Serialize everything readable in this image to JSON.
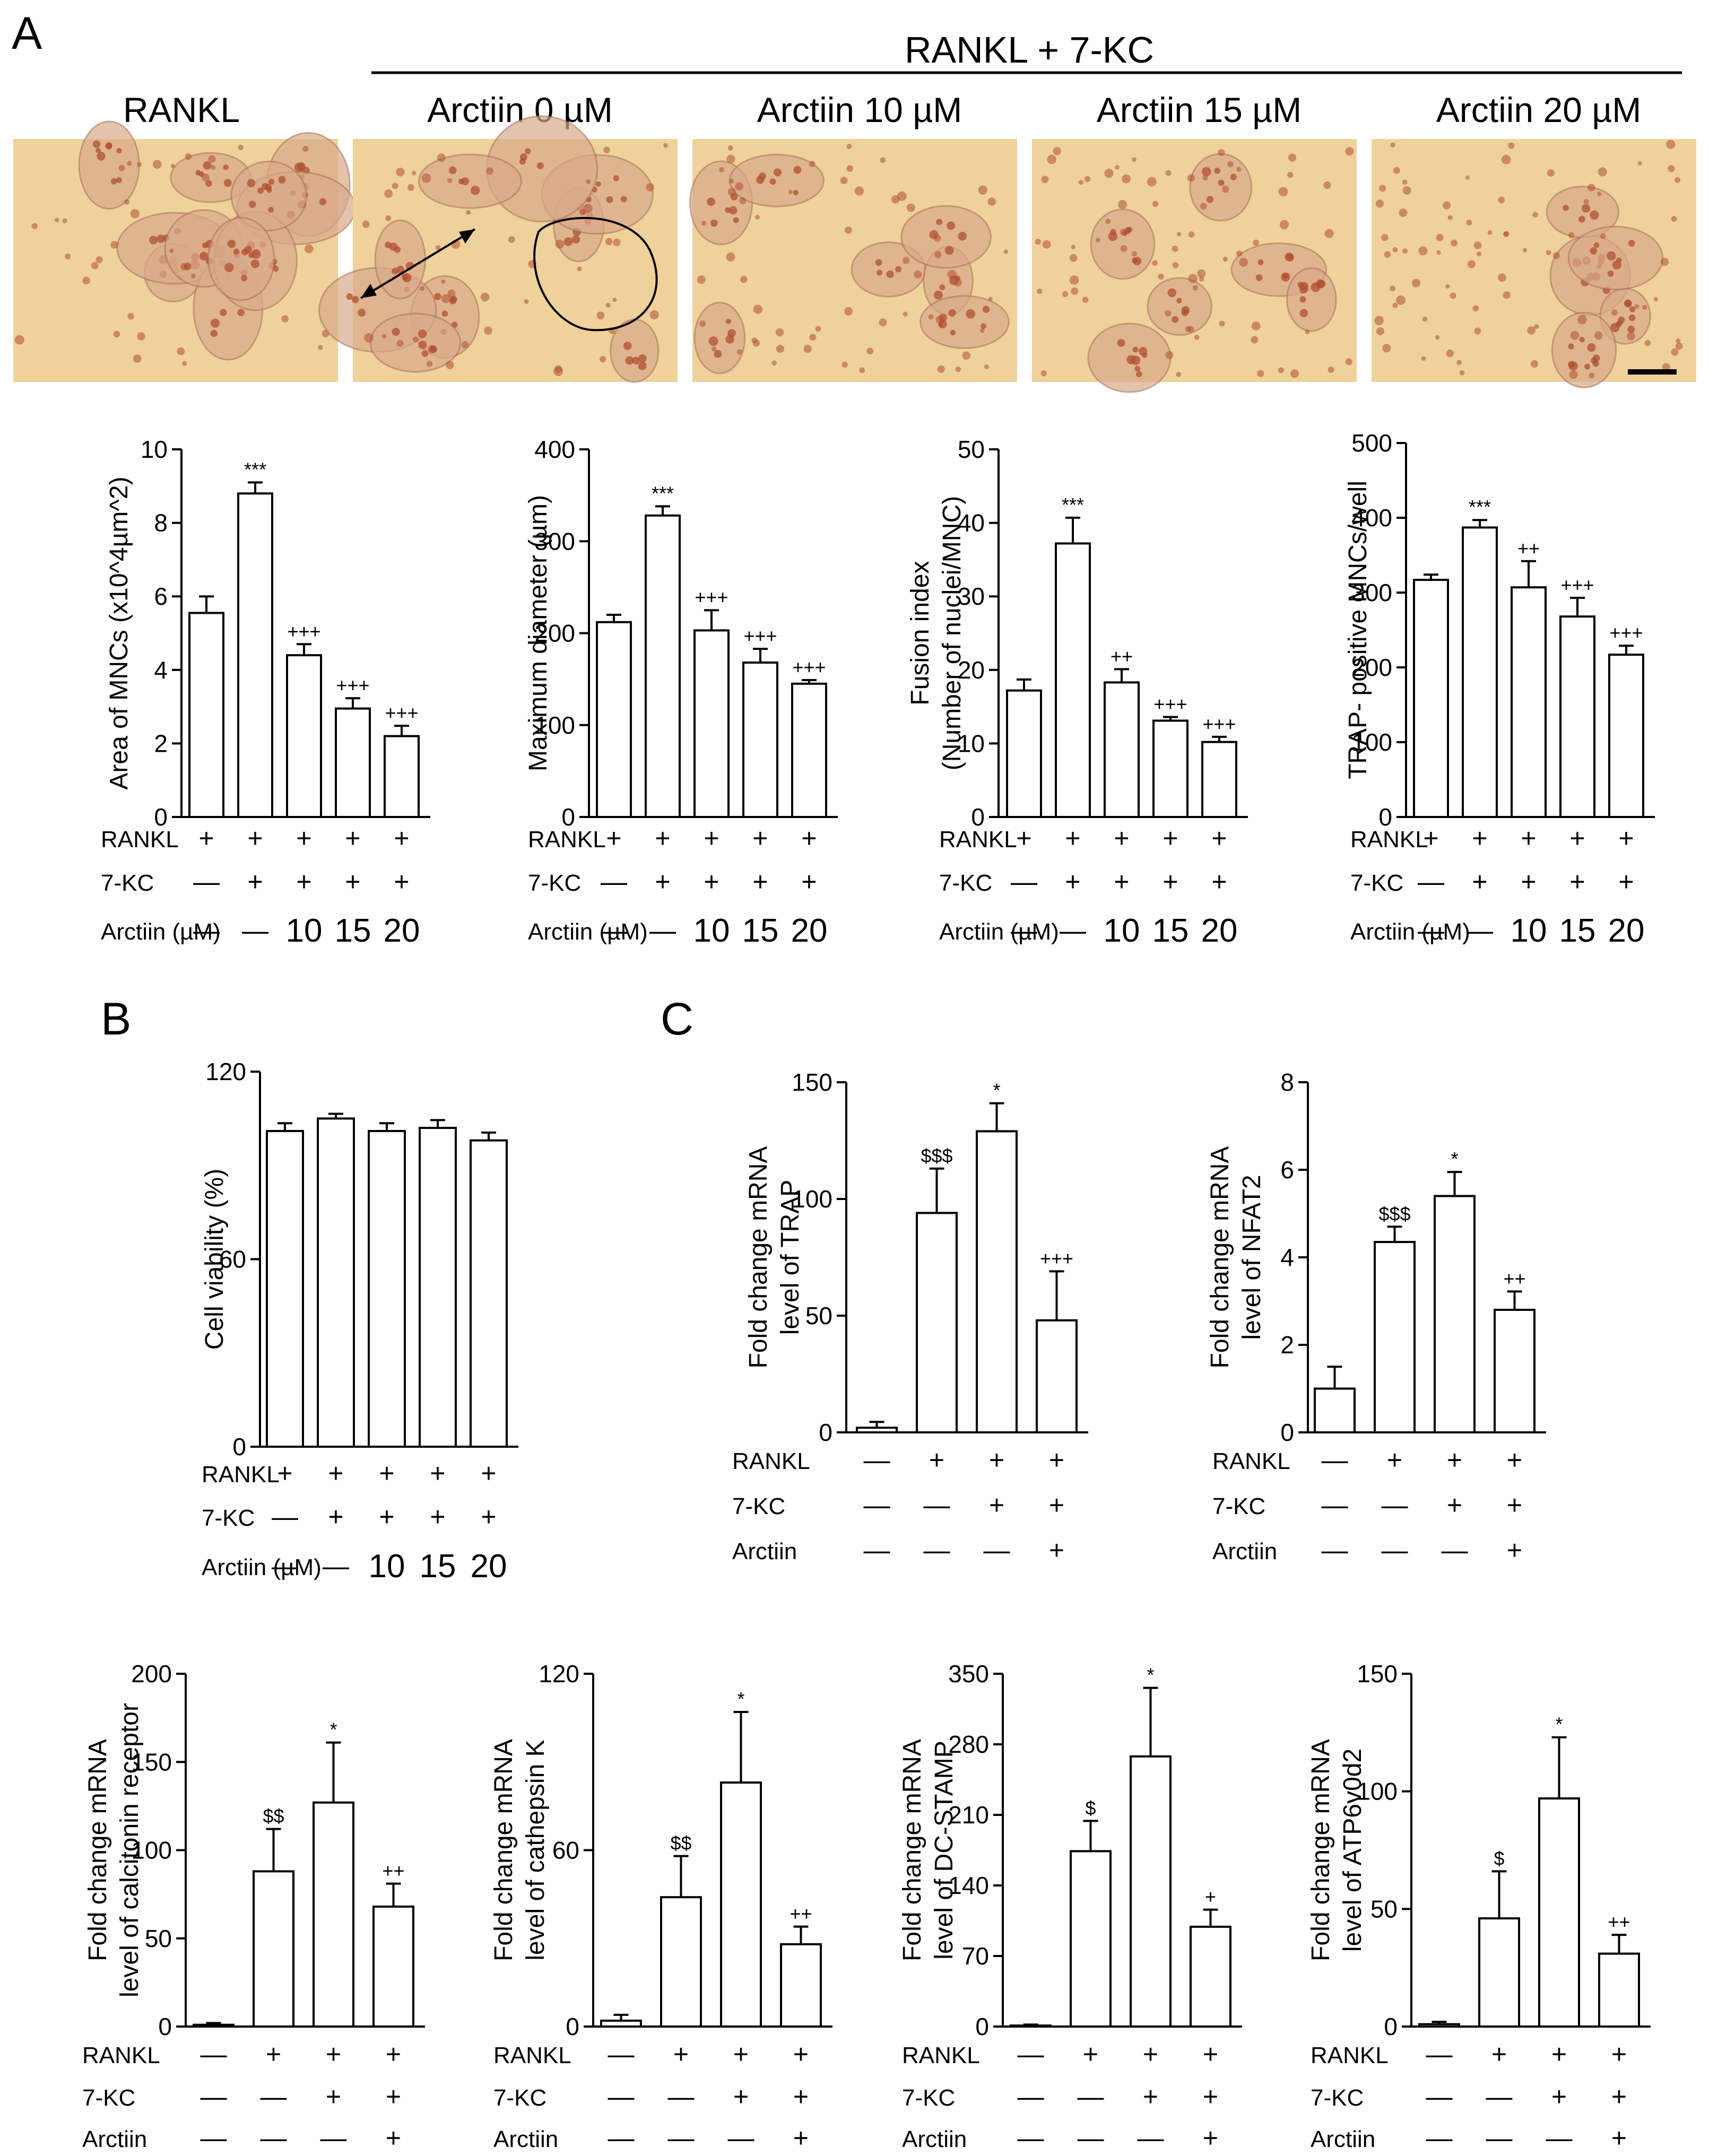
{
  "panel_labels": {
    "a": "A",
    "b": "B",
    "c": "C"
  },
  "panel_a": {
    "group_header": "RANKL + 7-KC",
    "image_titles": [
      "RANKL",
      "Arctiin 0 µM",
      "Arctiin 10 µM",
      "Arctiin 15 µM",
      "Arctiin  20 µM"
    ],
    "micrograph_palette": {
      "background": "#efd19a",
      "cell": "#d8a98a",
      "nuclei": "#b0502f",
      "bright": "#f6e3b8"
    }
  },
  "chart_data": [
    {
      "id": "a1",
      "type": "bar",
      "ylabel": "Area of MNCs (x10^4µm^2)",
      "ylim": [
        0,
        10
      ],
      "yticks": [
        0,
        2,
        4,
        6,
        8,
        10
      ],
      "values": [
        5.55,
        8.8,
        4.4,
        2.95,
        2.2
      ],
      "errors": [
        0.45,
        0.3,
        0.3,
        0.28,
        0.28
      ],
      "annotations": [
        "",
        "***",
        "+++",
        "+++",
        "+++"
      ],
      "condition_labels": [
        "RANKL",
        "7-KC",
        "Arctiin (µM)"
      ],
      "condition_values": [
        [
          "+",
          "+",
          "+",
          "+",
          "+"
        ],
        [
          "—",
          "+",
          "+",
          "+",
          "+"
        ],
        [
          "—",
          "—",
          "10",
          "15",
          "20"
        ]
      ]
    },
    {
      "id": "a2",
      "type": "bar",
      "ylabel": "Maximum diameter (µm)",
      "ylim": [
        0,
        400
      ],
      "yticks": [
        0,
        100,
        200,
        300,
        400
      ],
      "values": [
        212,
        328,
        203,
        168,
        145
      ],
      "errors": [
        8,
        10,
        22,
        15,
        4
      ],
      "annotations": [
        "",
        "***",
        "+++",
        "+++",
        "+++"
      ],
      "condition_labels": [
        "RANKL",
        "7-KC",
        "Arctiin (µM)"
      ],
      "condition_values": [
        [
          "+",
          "+",
          "+",
          "+",
          "+"
        ],
        [
          "—",
          "+",
          "+",
          "+",
          "+"
        ],
        [
          "—",
          "—",
          "10",
          "15",
          "20"
        ]
      ]
    },
    {
      "id": "a3",
      "type": "bar",
      "ylabel": "Fusion index",
      "ylabel2": "(Number of nuclei/MNC)",
      "ylim": [
        0,
        50
      ],
      "yticks": [
        0,
        10,
        20,
        30,
        40,
        50
      ],
      "values": [
        17.2,
        37.2,
        18.3,
        13.1,
        10.2
      ],
      "errors": [
        1.5,
        3.5,
        1.8,
        0.5,
        0.7
      ],
      "annotations": [
        "",
        "***",
        "++",
        "+++",
        "+++"
      ],
      "condition_labels": [
        "RANKL",
        "7-KC",
        "Arctiin (µM)"
      ],
      "condition_values": [
        [
          "+",
          "+",
          "+",
          "+",
          "+"
        ],
        [
          "—",
          "+",
          "+",
          "+",
          "+"
        ],
        [
          "—",
          "—",
          "10",
          "15",
          "20"
        ]
      ]
    },
    {
      "id": "a4",
      "type": "bar",
      "ylabel": "TRAP- positive MNCs/well",
      "ylim": [
        0,
        500
      ],
      "yticks": [
        0,
        100,
        200,
        300,
        400,
        500
      ],
      "values": [
        317,
        387,
        307,
        268,
        217
      ],
      "errors": [
        7,
        10,
        35,
        25,
        12
      ],
      "annotations": [
        "",
        "***",
        "++",
        "+++",
        "+++"
      ],
      "condition_labels": [
        "RANKL",
        "7-KC",
        "Arctiin (µM)"
      ],
      "condition_values": [
        [
          "+",
          "+",
          "+",
          "+",
          "+"
        ],
        [
          "—",
          "+",
          "+",
          "+",
          "+"
        ],
        [
          "—",
          "—",
          "10",
          "15",
          "20"
        ]
      ]
    },
    {
      "id": "b",
      "type": "bar",
      "ylabel": "Cell viability (%)",
      "ylim": [
        0,
        120
      ],
      "yticks": [
        0,
        60,
        120
      ],
      "values": [
        101,
        105,
        101,
        102,
        98
      ],
      "errors": [
        2.5,
        1.5,
        2.5,
        2.5,
        2.5
      ],
      "annotations": [
        "",
        "",
        "",
        "",
        ""
      ],
      "condition_labels": [
        "RANKL",
        "7-KC",
        "Arctiin (µM)"
      ],
      "condition_values": [
        [
          "+",
          "+",
          "+",
          "+",
          "+"
        ],
        [
          "—",
          "+",
          "+",
          "+",
          "+"
        ],
        [
          "—",
          "—",
          "10",
          "15",
          "20"
        ]
      ]
    },
    {
      "id": "c1",
      "type": "bar",
      "ylabel": "Fold change mRNA",
      "ylabel2": "level of TRAP",
      "ylim": [
        0,
        150
      ],
      "yticks": [
        0,
        50,
        100,
        150
      ],
      "values": [
        2,
        94,
        129,
        48
      ],
      "errors": [
        2.5,
        19,
        12,
        21
      ],
      "annotations": [
        "",
        "$$$",
        "*",
        "+++"
      ],
      "condition_labels": [
        "RANKL",
        "7-KC",
        "Arctiin"
      ],
      "condition_values": [
        [
          "—",
          "+",
          "+",
          "+"
        ],
        [
          "—",
          "—",
          "+",
          "+"
        ],
        [
          "—",
          "—",
          "—",
          "+"
        ]
      ]
    },
    {
      "id": "c2",
      "type": "bar",
      "ylabel": "Fold change mRNA",
      "ylabel2": "level of NFAT2",
      "ylim": [
        0,
        8
      ],
      "yticks": [
        0,
        2,
        4,
        6,
        8
      ],
      "values": [
        1.0,
        4.35,
        5.4,
        2.8
      ],
      "errors": [
        0.5,
        0.35,
        0.55,
        0.42
      ],
      "annotations": [
        "",
        "$$$",
        "*",
        "++"
      ],
      "condition_labels": [
        "RANKL",
        "7-KC",
        "Arctiin"
      ],
      "condition_values": [
        [
          "—",
          "+",
          "+",
          "+"
        ],
        [
          "—",
          "—",
          "+",
          "+"
        ],
        [
          "—",
          "—",
          "—",
          "+"
        ]
      ]
    },
    {
      "id": "c3",
      "type": "bar",
      "ylabel": "Fold change mRNA",
      "ylabel2": "level of calcitonin receptor",
      "ylim": [
        0,
        200
      ],
      "yticks": [
        0,
        50,
        100,
        150,
        200
      ],
      "values": [
        1,
        88,
        127,
        68
      ],
      "errors": [
        1,
        24,
        34,
        13
      ],
      "annotations": [
        "",
        "$$",
        "*",
        "++"
      ],
      "condition_labels": [
        "RANKL",
        "7-KC",
        "Arctiin"
      ],
      "condition_values": [
        [
          "—",
          "+",
          "+",
          "+"
        ],
        [
          "—",
          "—",
          "+",
          "+"
        ],
        [
          "—",
          "—",
          "—",
          "+"
        ]
      ]
    },
    {
      "id": "c4",
      "type": "bar",
      "ylabel": "Fold change mRNA",
      "ylabel2": "level of cathepsin K",
      "ylim": [
        0,
        120
      ],
      "yticks": [
        0,
        60,
        120
      ],
      "values": [
        2,
        44,
        83,
        28
      ],
      "errors": [
        2,
        14,
        24,
        6
      ],
      "annotations": [
        "",
        "$$",
        "*",
        "++"
      ],
      "condition_labels": [
        "RANKL",
        "7-KC",
        "Arctiin"
      ],
      "condition_values": [
        [
          "—",
          "+",
          "+",
          "+"
        ],
        [
          "—",
          "—",
          "+",
          "+"
        ],
        [
          "—",
          "—",
          "—",
          "+"
        ]
      ]
    },
    {
      "id": "c5",
      "type": "bar",
      "ylabel": "Fold change mRNA",
      "ylabel2": "level of DC-STAMP",
      "ylim": [
        0,
        350
      ],
      "yticks": [
        0,
        70,
        140,
        210,
        280,
        350
      ],
      "values": [
        1,
        174,
        268,
        99
      ],
      "errors": [
        1,
        30,
        68,
        17
      ],
      "annotations": [
        "",
        "$",
        "*",
        "+"
      ],
      "condition_labels": [
        "RANKL",
        "7-KC",
        "Arctiin"
      ],
      "condition_values": [
        [
          "—",
          "+",
          "+",
          "+"
        ],
        [
          "—",
          "—",
          "+",
          "+"
        ],
        [
          "—",
          "—",
          "—",
          "+"
        ]
      ]
    },
    {
      "id": "c6",
      "type": "bar",
      "ylabel": "Fold change mRNA",
      "ylabel2": "level of ATP6v0d2",
      "ylim": [
        0,
        150
      ],
      "yticks": [
        0,
        50,
        100,
        150
      ],
      "values": [
        1,
        46,
        97,
        31
      ],
      "errors": [
        1,
        20,
        26,
        8
      ],
      "annotations": [
        "",
        "$",
        "*",
        "++"
      ],
      "condition_labels": [
        "RANKL",
        "7-KC",
        "Arctiin"
      ],
      "condition_values": [
        [
          "—",
          "+",
          "+",
          "+"
        ],
        [
          "—",
          "—",
          "+",
          "+"
        ],
        [
          "—",
          "—",
          "—",
          "+"
        ]
      ]
    }
  ]
}
